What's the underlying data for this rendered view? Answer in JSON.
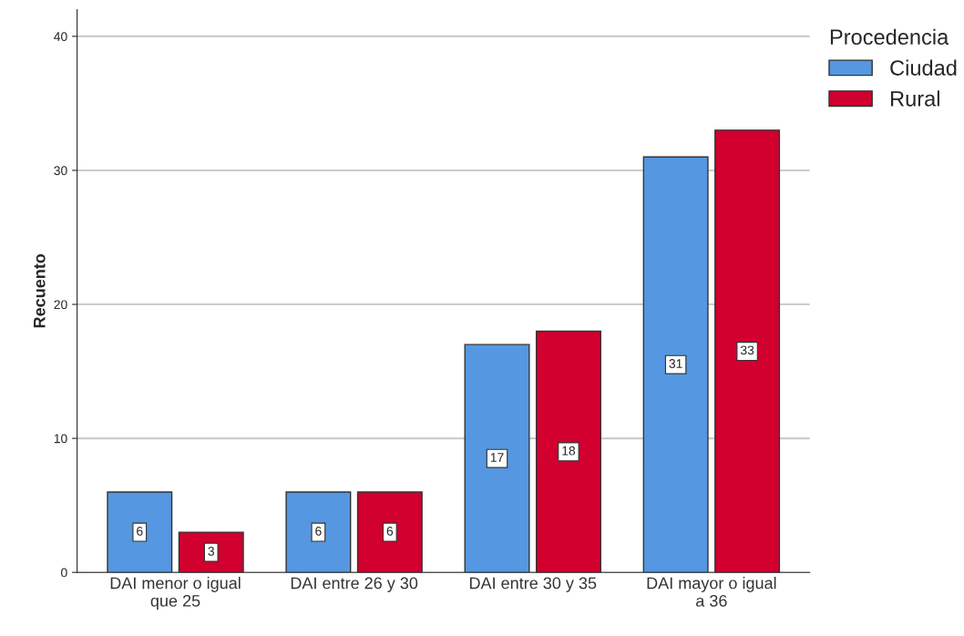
{
  "chart_data": {
    "type": "bar",
    "ylabel": "Recuento",
    "legend_title": "Procedencia",
    "categories": [
      "DAI menor o igual\nque 25",
      "DAI entre 26 y 30",
      "DAI entre 30 y 35",
      "DAI mayor o igual\na 36"
    ],
    "series": [
      {
        "name": "Ciudad",
        "color": "#5597e0",
        "values": [
          6,
          6,
          17,
          31
        ]
      },
      {
        "name": "Rural",
        "color": "#d1002e",
        "values": [
          3,
          6,
          18,
          33
        ]
      }
    ],
    "ylim": [
      0,
      42
    ],
    "yticks": [
      0,
      10,
      20,
      30,
      40
    ],
    "grid": "y",
    "legend": "top right",
    "data_labels": true
  }
}
